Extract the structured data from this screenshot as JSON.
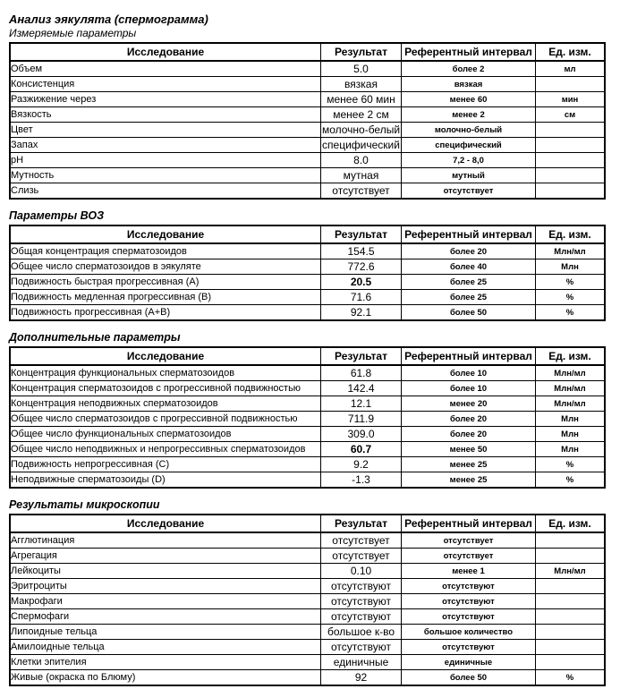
{
  "page": {
    "title": "Анализ эякулята (спермограмма)"
  },
  "columns": [
    "Исследование",
    "Результат",
    "Референтный интервал",
    "Ед. изм."
  ],
  "sections": [
    {
      "title": "Измеряемые параметры",
      "title_bold": false,
      "rows": [
        {
          "name": "Объем",
          "result": "5.0",
          "ref": "более 2",
          "unit": "мл"
        },
        {
          "name": "Консистенция",
          "result": "вязкая",
          "ref": "вязкая",
          "unit": ""
        },
        {
          "name": "Разжижение через",
          "result": "менее 60 мин",
          "ref": "менее 60",
          "unit": "мин"
        },
        {
          "name": "Вязкость",
          "result": "менее 2 см",
          "ref": "менее 2",
          "unit": "см"
        },
        {
          "name": "Цвет",
          "result": "молочно-белый",
          "ref": "молочно-белый",
          "unit": ""
        },
        {
          "name": "Запах",
          "result": "специфический",
          "ref": "специфический",
          "unit": ""
        },
        {
          "name": "pH",
          "result": "8.0",
          "ref": "7,2 - 8,0",
          "unit": ""
        },
        {
          "name": "Мутность",
          "result": "мутная",
          "ref": "мутный",
          "unit": ""
        },
        {
          "name": "Слизь",
          "result": "отсутствует",
          "ref": "отсутствует",
          "unit": ""
        }
      ]
    },
    {
      "title": "Параметры ВОЗ",
      "title_bold": true,
      "rows": [
        {
          "name": "Общая концентрация сперматозоидов",
          "result": "154.5",
          "ref": "более 20",
          "unit": "Млн/мл"
        },
        {
          "name": "Общее число сперматозоидов в эякуляте",
          "result": "772.6",
          "ref": "более 40",
          "unit": "Млн"
        },
        {
          "name": "Подвижность быстрая прогрессивная (A)",
          "result": "20.5",
          "result_bold": true,
          "ref": "более 25",
          "unit": "%"
        },
        {
          "name": "Подвижность медленная прогрессивная (B)",
          "result": "71.6",
          "ref": "более 25",
          "unit": "%"
        },
        {
          "name": "Подвижность прогрессивная (A+B)",
          "result": "92.1",
          "ref": "более 50",
          "unit": "%"
        }
      ]
    },
    {
      "title": "Дополнительные параметры",
      "title_bold": true,
      "rows": [
        {
          "name": "Концентрация функциональных сперматозоидов",
          "result": "61.8",
          "ref": "более 10",
          "unit": "Млн/мл"
        },
        {
          "name": "Концентрация сперматозоидов с прогрессивной подвижностью",
          "result": "142.4",
          "ref": "более 10",
          "unit": "Млн/мл"
        },
        {
          "name": "Концентрация неподвижных сперматозоидов",
          "result": "12.1",
          "ref": "менее 20",
          "unit": "Млн/мл"
        },
        {
          "name": "Общее число сперматозоидов с прогрессивной подвижностью",
          "result": "711.9",
          "ref": "более 20",
          "unit": "Млн"
        },
        {
          "name": "Общее число функциональных сперматозоидов",
          "result": "309.0",
          "ref": "более 20",
          "unit": "Млн"
        },
        {
          "name": "Общее число неподвижных и непрогрессивных сперматозоидов",
          "result": "60.7",
          "result_bold": true,
          "ref": "менее 50",
          "unit": "Млн"
        },
        {
          "name": "Подвижность непрогрессивная (C)",
          "result": "9.2",
          "ref": "менее 25",
          "unit": "%"
        },
        {
          "name": "Неподвижные сперматозоиды (D)",
          "result": "-1.3",
          "ref": "менее 25",
          "unit": "%"
        }
      ]
    },
    {
      "title": "Результаты микроскопии",
      "title_bold": true,
      "rows": [
        {
          "name": "Агглютинация",
          "result": "отсутствует",
          "ref": "отсутствует",
          "unit": ""
        },
        {
          "name": "Агрегация",
          "result": "отсутствует",
          "ref": "отсутствует",
          "unit": ""
        },
        {
          "name": "Лейкоциты",
          "result": "0.10",
          "ref": "менее 1",
          "unit": "Млн/мл"
        },
        {
          "name": "Эритроциты",
          "result": "отсутствуют",
          "ref": "отсутствуют",
          "unit": ""
        },
        {
          "name": "Макрофаги",
          "result": "отсутствуют",
          "ref": "отсутствуют",
          "unit": ""
        },
        {
          "name": "Спермофаги",
          "result": "отсутствуют",
          "ref": "отсутствуют",
          "unit": ""
        },
        {
          "name": "Липоидные тельца",
          "result": "большое к-во",
          "ref": "большое количество",
          "unit": ""
        },
        {
          "name": "Амилоидные тельца",
          "result": "отсутствуют",
          "ref": "отсутствуют",
          "unit": ""
        },
        {
          "name": "Клетки эпителия",
          "result": "единичные",
          "ref": "единичные",
          "unit": ""
        },
        {
          "name": "Живые (окраска по Блюму)",
          "result": "92",
          "ref": "более 50",
          "unit": "%"
        }
      ]
    }
  ]
}
